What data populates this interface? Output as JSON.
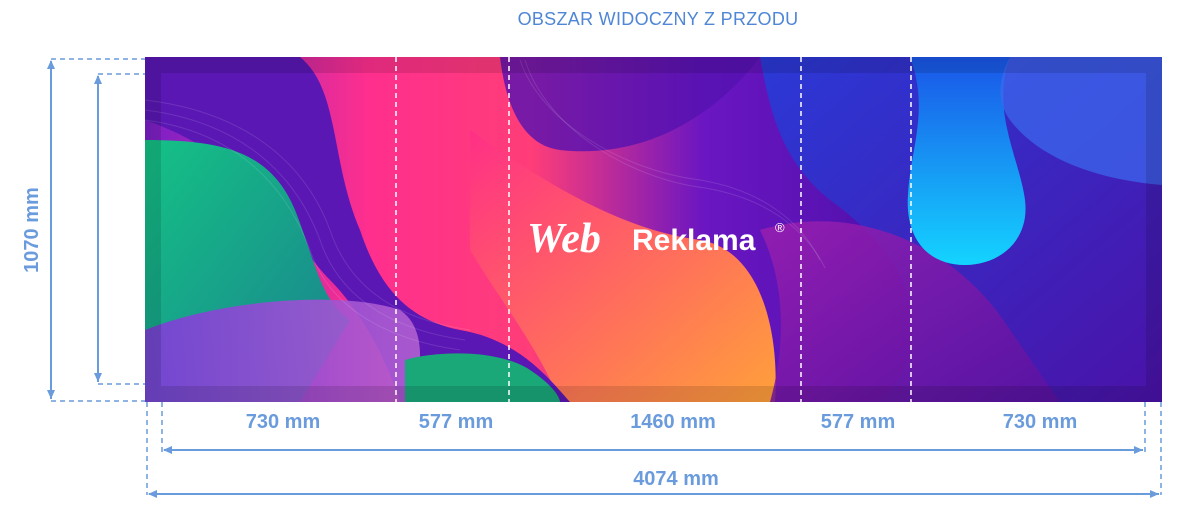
{
  "title": "OBSZAR WIDOCZNY Z PRZODU",
  "height_label": "1070 mm",
  "segments": [
    {
      "label": "730 mm"
    },
    {
      "label": "577 mm"
    },
    {
      "label": "1460 mm"
    },
    {
      "label": "577 mm"
    },
    {
      "label": "730 mm"
    }
  ],
  "total_label": "4074 mm",
  "logo": {
    "part1": "Web",
    "part2": "Reklama",
    "registered": "®"
  },
  "colors": {
    "dimension": "#6a9bdc",
    "title": "#4f86d6",
    "panel_pink": "#ff2b8c",
    "panel_purple": "#4b0fa8",
    "panel_green": "#1fa877",
    "panel_cyan": "#16c6ff",
    "panel_orange": "#ff9a3a"
  }
}
